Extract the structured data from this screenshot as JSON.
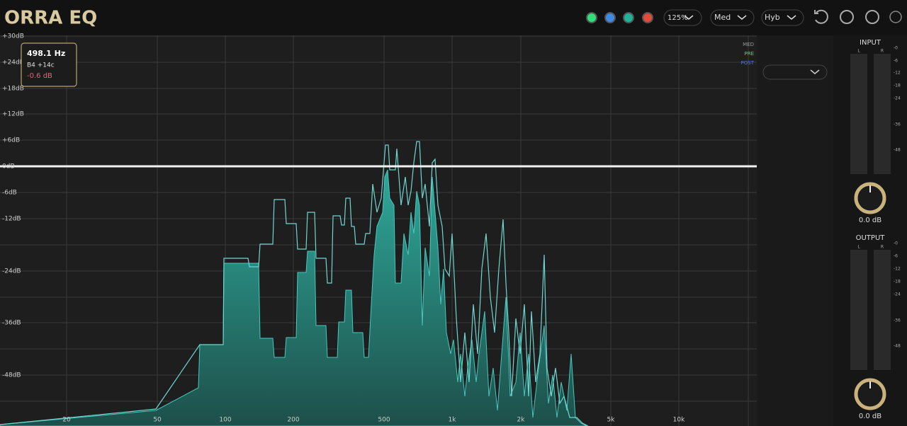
{
  "header": {
    "title": "ORRA EQ",
    "zoom": "125%",
    "mode": "Med",
    "quality": "Hyb"
  },
  "tooltip": {
    "frequency": "498.1 Hz",
    "note": "B4 +14c",
    "gain": "-0.6 dB"
  },
  "db_labels": [
    "+30dB",
    "+24dB",
    "+18dB",
    "+12dB",
    "+6dB",
    "0dB",
    "-6dB",
    "-12dB",
    "-24dB",
    "-36dB",
    "-48dB"
  ],
  "freq_labels": [
    "20",
    "50",
    "100",
    "200",
    "500",
    "1k",
    "2k",
    "5k",
    "10k"
  ],
  "legend": [
    "MED",
    "PRE",
    "POST"
  ],
  "input": {
    "label": "INPUT",
    "left": "L",
    "right": "R",
    "value": "0.0 dB"
  },
  "output": {
    "label": "OUTPUT",
    "left": "L",
    "right": "R",
    "value": "0.0 dB"
  },
  "meter_scale": [
    "-0",
    "-6",
    "-12",
    "-18",
    "-24",
    "-36",
    "-48"
  ]
}
